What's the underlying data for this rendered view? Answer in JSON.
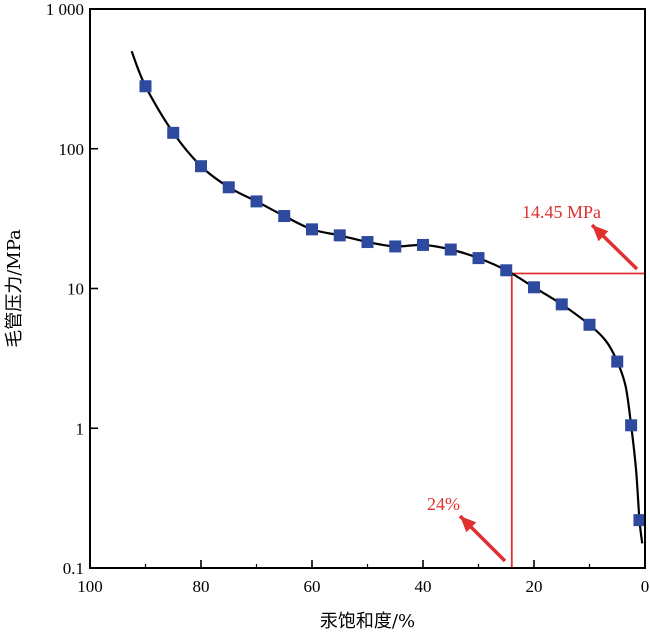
{
  "chart_data": {
    "type": "scatter",
    "xlabel": "汞饱和度/%",
    "ylabel": "毛管压力/MPa",
    "x_reversed": true,
    "xlim": [
      100,
      0
    ],
    "y_scale": "log",
    "ylim": [
      0.1,
      1000
    ],
    "x_ticks": [
      "100",
      "80",
      "60",
      "40",
      "20",
      "0"
    ],
    "y_ticks": [
      "0.1",
      "1",
      "10",
      "100",
      "1 000"
    ],
    "grid": false,
    "legend": "none",
    "series": [
      {
        "marker": "square",
        "points": [
          [
            90,
            280
          ],
          [
            85,
            130
          ],
          [
            80,
            75
          ],
          [
            75,
            53
          ],
          [
            70,
            42
          ],
          [
            65,
            33
          ],
          [
            60,
            26.5
          ],
          [
            55,
            24
          ],
          [
            50,
            21.5
          ],
          [
            45,
            20
          ],
          [
            40,
            20.5
          ],
          [
            35,
            19
          ],
          [
            30,
            16.5
          ],
          [
            25,
            13.5
          ],
          [
            20,
            10.2
          ],
          [
            15,
            7.7
          ],
          [
            10,
            5.5
          ],
          [
            5,
            3.0
          ],
          [
            2.5,
            1.05
          ],
          [
            1,
            0.22
          ]
        ]
      }
    ],
    "fit_curve": [
      [
        92.5,
        500
      ],
      [
        90,
        280
      ],
      [
        85,
        130
      ],
      [
        80,
        75
      ],
      [
        75,
        53
      ],
      [
        70,
        42
      ],
      [
        65,
        33
      ],
      [
        60,
        26.5
      ],
      [
        55,
        24
      ],
      [
        50,
        21.5
      ],
      [
        45,
        20
      ],
      [
        40,
        20.5
      ],
      [
        35,
        19
      ],
      [
        30,
        16.5
      ],
      [
        25,
        13.5
      ],
      [
        20,
        10.2
      ],
      [
        15,
        7.7
      ],
      [
        10,
        5.5
      ],
      [
        7,
        4.2
      ],
      [
        5,
        3.0
      ],
      [
        3.5,
        2.0
      ],
      [
        2.5,
        1.05
      ],
      [
        1.6,
        0.5
      ],
      [
        1,
        0.22
      ],
      [
        0.5,
        0.15
      ]
    ],
    "annotations": [
      {
        "text": "14.45 MPa",
        "ref_y": 12.8
      },
      {
        "text": "24%",
        "ref_x": 24
      }
    ],
    "colors": {
      "marker": "#2e4a9e",
      "curve": "#000000",
      "annotation": "#e03030"
    }
  }
}
